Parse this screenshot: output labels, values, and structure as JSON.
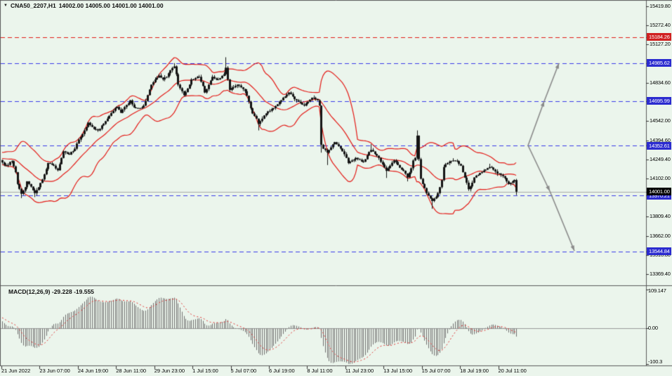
{
  "header": {
    "symbol_period": "CNA50_2207,H1",
    "ohlc": "14002.00 14005.00 14001.00 14001.00",
    "collapse_icon": "▼"
  },
  "macd": {
    "label": "MACD(12,26,9) -29.228 -19.555",
    "params": "12,26,9",
    "macd_value": -29.228,
    "signal_value": -19.555
  },
  "colors": {
    "background": "#EBF5EC",
    "blue_line": "#3A3AE8",
    "red_line": "#E41B17",
    "candle": "#151515",
    "macd_bar": "#6F6F6F",
    "signal_red": "#E03030",
    "badge_blue": "#2B2BCF",
    "badge_red": "#D02020",
    "badge_black": "#000000",
    "arrow_gray": "#8A8A8A",
    "separator": "#5A5A5A",
    "current_price_line": "#A9A9A9",
    "zero_line": "#9A9A9A"
  },
  "price_axis": {
    "ticks": [
      "15419.80",
      "15272.40",
      "15127.20",
      "14834.60",
      "14542.00",
      "14394.60",
      "14249.40",
      "14102.00",
      "13809.40",
      "13662.00",
      "13516.80",
      "13369.40"
    ],
    "badges": [
      {
        "text": "15184.26",
        "value": 15184.26,
        "type": "red"
      },
      {
        "text": "14985.62",
        "value": 14985.62,
        "type": "blue"
      },
      {
        "text": "14695.99",
        "value": 14695.99,
        "type": "blue"
      },
      {
        "text": "14352.61",
        "value": 14352.61,
        "type": "blue"
      },
      {
        "text": "13970.21",
        "value": 13970.21,
        "type": "blue"
      },
      {
        "text": "13544.84",
        "value": 13544.84,
        "type": "blue"
      },
      {
        "text": "14001.00",
        "value": 14001.0,
        "type": "black"
      }
    ]
  },
  "macd_axis": {
    "top": {
      "text": "109.147",
      "value": 109.147
    },
    "zero": {
      "text": "0.00",
      "value": 0
    },
    "bottom": {
      "text": "-100.3",
      "value": -100.3
    }
  },
  "time_axis": {
    "labels": [
      "21 Jun 2022",
      "23 Jun 07:00",
      "24 Jun 19:00",
      "28 Jun 11:00",
      "29 Jun 23:00",
      "1 Jul 15:00",
      "5 Jul 07:00",
      "6 Jul 19:00",
      "8 Jul 11:00",
      "11 Jul 23:00",
      "13 Jul 15:00",
      "15 Jul 07:00",
      "18 Jul 19:00",
      "20 Jul 11:00"
    ],
    "bars_per_label": 20
  },
  "chart_data": {
    "type": "candlestick",
    "title": "CNA50_2207,H1",
    "bars": 270,
    "price_range_shown": [
      13369.4,
      15419.8
    ],
    "levels": [
      {
        "price": 15184.26,
        "style": "dashed",
        "color": "red"
      },
      {
        "price": 14985.62,
        "style": "dashed",
        "color": "blue"
      },
      {
        "price": 14695.99,
        "style": "dashed",
        "color": "blue"
      },
      {
        "price": 14352.61,
        "style": "dashed",
        "color": "blue"
      },
      {
        "price": 13970.21,
        "style": "dashed",
        "color": "blue"
      },
      {
        "price": 13544.84,
        "style": "dashed",
        "color": "blue"
      },
      {
        "price": 14001.0,
        "style": "solid-thin",
        "color": "gray",
        "note": "current price"
      }
    ],
    "close_keypoints": [
      [
        0,
        14225
      ],
      [
        2,
        14200
      ],
      [
        5,
        14235
      ],
      [
        7,
        14150
      ],
      [
        8,
        14060
      ],
      [
        10,
        13985
      ],
      [
        12,
        14035
      ],
      [
        13,
        14080
      ],
      [
        15,
        14040
      ],
      [
        17,
        13990
      ],
      [
        19,
        14035
      ],
      [
        21,
        14095
      ],
      [
        24,
        14220
      ],
      [
        27,
        14200
      ],
      [
        29,
        14165
      ],
      [
        32,
        14310
      ],
      [
        35,
        14285
      ],
      [
        38,
        14330
      ],
      [
        40,
        14400
      ],
      [
        43,
        14470
      ],
      [
        45,
        14530
      ],
      [
        48,
        14480
      ],
      [
        50,
        14470
      ],
      [
        53,
        14520
      ],
      [
        55,
        14560
      ],
      [
        58,
        14620
      ],
      [
        60,
        14650
      ],
      [
        62,
        14605
      ],
      [
        65,
        14665
      ],
      [
        67,
        14700
      ],
      [
        69,
        14645
      ],
      [
        72,
        14640
      ],
      [
        74,
        14660
      ],
      [
        76,
        14740
      ],
      [
        78,
        14820
      ],
      [
        80,
        14860
      ],
      [
        82,
        14890
      ],
      [
        84,
        14860
      ],
      [
        86,
        14880
      ],
      [
        88,
        14930
      ],
      [
        90,
        14960
      ],
      [
        91,
        14900
      ],
      [
        92,
        14820
      ],
      [
        94,
        14770
      ],
      [
        95,
        14740
      ],
      [
        97,
        14790
      ],
      [
        99,
        14860
      ],
      [
        101,
        14870
      ],
      [
        103,
        14880
      ],
      [
        105,
        14810
      ],
      [
        106,
        14760
      ],
      [
        108,
        14820
      ],
      [
        110,
        14880
      ],
      [
        112,
        14860
      ],
      [
        114,
        14870
      ],
      [
        116,
        14900
      ],
      [
        117,
        14950
      ],
      [
        118,
        14860
      ],
      [
        119,
        14780
      ],
      [
        121,
        14800
      ],
      [
        123,
        14820
      ],
      [
        125,
        14800
      ],
      [
        127,
        14770
      ],
      [
        129,
        14690
      ],
      [
        131,
        14600
      ],
      [
        133,
        14560
      ],
      [
        134,
        14520
      ],
      [
        136,
        14560
      ],
      [
        138,
        14600
      ],
      [
        140,
        14620
      ],
      [
        142,
        14640
      ],
      [
        144,
        14670
      ],
      [
        146,
        14700
      ],
      [
        148,
        14730
      ],
      [
        150,
        14760
      ],
      [
        152,
        14730
      ],
      [
        154,
        14700
      ],
      [
        156,
        14680
      ],
      [
        158,
        14660
      ],
      [
        160,
        14690
      ],
      [
        162,
        14720
      ],
      [
        164,
        14710
      ],
      [
        165,
        14700
      ],
      [
        166,
        14660
      ],
      [
        167,
        14360
      ],
      [
        168,
        14330
      ],
      [
        170,
        14300
      ],
      [
        172,
        14340
      ],
      [
        174,
        14380
      ],
      [
        176,
        14350
      ],
      [
        178,
        14310
      ],
      [
        180,
        14260
      ],
      [
        181,
        14220
      ],
      [
        183,
        14240
      ],
      [
        185,
        14260
      ],
      [
        187,
        14245
      ],
      [
        189,
        14230
      ],
      [
        191,
        14280
      ],
      [
        193,
        14320
      ],
      [
        195,
        14290
      ],
      [
        197,
        14260
      ],
      [
        199,
        14210
      ],
      [
        201,
        14160
      ],
      [
        203,
        14200
      ],
      [
        205,
        14240
      ],
      [
        207,
        14205
      ],
      [
        209,
        14170
      ],
      [
        211,
        14140
      ],
      [
        212,
        14110
      ],
      [
        214,
        14180
      ],
      [
        215,
        14240
      ],
      [
        216,
        14260
      ],
      [
        217,
        14430
      ],
      [
        218,
        14250
      ],
      [
        219,
        14100
      ],
      [
        220,
        14060
      ],
      [
        222,
        13990
      ],
      [
        224,
        13950
      ],
      [
        225,
        13930
      ],
      [
        227,
        13960
      ],
      [
        228,
        13990
      ],
      [
        230,
        14090
      ],
      [
        231,
        14190
      ],
      [
        233,
        14220
      ],
      [
        234,
        14230
      ],
      [
        236,
        14240
      ],
      [
        238,
        14235
      ],
      [
        240,
        14200
      ],
      [
        241,
        14150
      ],
      [
        243,
        14070
      ],
      [
        244,
        14020
      ],
      [
        246,
        14070
      ],
      [
        247,
        14110
      ],
      [
        249,
        14130
      ],
      [
        251,
        14150
      ],
      [
        253,
        14170
      ],
      [
        255,
        14190
      ],
      [
        257,
        14170
      ],
      [
        259,
        14140
      ],
      [
        261,
        14130
      ],
      [
        262,
        14120
      ],
      [
        264,
        14080
      ],
      [
        265,
        14060
      ],
      [
        267,
        14080
      ],
      [
        268,
        14090
      ],
      [
        269,
        14001
      ]
    ],
    "wick_overrides": [
      [
        10,
        "low",
        13952
      ],
      [
        17,
        "low",
        13960
      ],
      [
        90,
        "high",
        14985
      ],
      [
        117,
        "high",
        15030
      ],
      [
        134,
        "low",
        14470
      ],
      [
        167,
        "low",
        14300
      ],
      [
        170,
        "low",
        14205
      ],
      [
        193,
        "high",
        14365
      ],
      [
        201,
        "low",
        14106
      ],
      [
        212,
        "low",
        14080
      ],
      [
        217,
        "high",
        14470
      ],
      [
        225,
        "low",
        13870
      ],
      [
        255,
        "high",
        14215
      ],
      [
        269,
        "low",
        13975
      ]
    ],
    "indicators": {
      "bollinger": {
        "period": 20,
        "deviation": 2,
        "color": "#E41B17"
      },
      "macd": {
        "fast": 12,
        "slow": 26,
        "signal": 9,
        "current_macd": -29.228,
        "current_signal": -19.555,
        "axis_max": 109.147,
        "axis_min": -100.3
      }
    },
    "arrows": [
      {
        "from": [
          752,
          207
        ],
        "to": [
          775,
          144
        ]
      },
      {
        "from": [
          775,
          144
        ],
        "to": [
          796,
          90
        ]
      },
      {
        "from": [
          752,
          207
        ],
        "to": [
          783,
          272
        ]
      },
      {
        "from": [
          783,
          272
        ],
        "to": [
          818,
          357
        ]
      }
    ]
  }
}
